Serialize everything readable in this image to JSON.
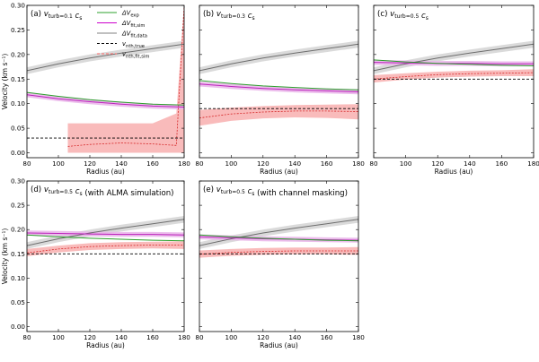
{
  "figure": {
    "xlabel": "Radius (au)",
    "ylabel": "Velocity (km s⁻¹)",
    "xlim": [
      80,
      180
    ],
    "ylim": [
      -0.01,
      0.3
    ],
    "xticks": [
      "80",
      "100",
      "120",
      "140",
      "160",
      "180"
    ],
    "yticks": [
      "0.00",
      "0.05",
      "0.10",
      "0.15",
      "0.20",
      "0.25",
      "0.30"
    ],
    "legend": [
      {
        "label": "ΔV_exp",
        "color": "#2ca02c",
        "style": "solid"
      },
      {
        "label": "ΔV_fit,sim",
        "color": "#cc00cc",
        "style": "solid"
      },
      {
        "label": "ΔV_fit,data",
        "color": "#808080",
        "style": "solid"
      },
      {
        "label": "v_nth,true",
        "color": "#000000",
        "style": "dashed"
      },
      {
        "label": "v_nth,fit,sim",
        "color": "#ff6666",
        "style": "dashed"
      }
    ]
  },
  "chart_data": [
    {
      "type": "line",
      "title": "(a) v_turb=0.1 c_s",
      "x": [
        80,
        100,
        120,
        140,
        160,
        180
      ],
      "series": [
        {
          "name": "ΔV_fit,data",
          "values": [
            0.167,
            0.181,
            0.193,
            0.203,
            0.212,
            0.221
          ],
          "band": 0.007
        },
        {
          "name": "ΔV_exp",
          "values": [
            0.123,
            0.115,
            0.108,
            0.103,
            0.099,
            0.097
          ]
        },
        {
          "name": "ΔV_fit,sim",
          "values": [
            0.118,
            0.11,
            0.104,
            0.099,
            0.095,
            0.093
          ],
          "band": 0.005
        },
        {
          "name": "v_nth,true",
          "values": [
            0.03,
            0.03,
            0.03,
            0.03,
            0.03,
            0.03
          ]
        },
        {
          "name": "v_nth,fit,sim",
          "x": [
            106,
            120,
            140,
            160,
            175,
            180
          ],
          "values": [
            0.013,
            0.017,
            0.02,
            0.018,
            0.015,
            0.3
          ],
          "lower": [
            0.0,
            0.0,
            0.0,
            0.0,
            0.0,
            0.0
          ],
          "upper": [
            0.06,
            0.06,
            0.06,
            0.06,
            0.08,
            0.3
          ]
        }
      ]
    },
    {
      "type": "line",
      "title": "(b) v_turb=0.3 c_s",
      "x": [
        80,
        100,
        120,
        140,
        160,
        180
      ],
      "series": [
        {
          "name": "ΔV_fit,data",
          "values": [
            0.167,
            0.181,
            0.193,
            0.203,
            0.212,
            0.221
          ],
          "band": 0.007
        },
        {
          "name": "ΔV_exp",
          "values": [
            0.147,
            0.141,
            0.136,
            0.133,
            0.13,
            0.128
          ]
        },
        {
          "name": "ΔV_fit,sim",
          "values": [
            0.14,
            0.135,
            0.131,
            0.128,
            0.126,
            0.124
          ],
          "band": 0.005
        },
        {
          "name": "v_nth,true",
          "values": [
            0.09,
            0.09,
            0.09,
            0.09,
            0.09,
            0.09
          ]
        },
        {
          "name": "v_nth,fit,sim",
          "values": [
            0.071,
            0.079,
            0.083,
            0.085,
            0.085,
            0.084
          ],
          "lower": [
            0.055,
            0.065,
            0.07,
            0.072,
            0.071,
            0.068
          ],
          "upper": [
            0.087,
            0.092,
            0.095,
            0.097,
            0.098,
            0.099
          ]
        }
      ]
    },
    {
      "type": "line",
      "title": "(c) v_turb=0.5 c_s",
      "x": [
        80,
        100,
        120,
        140,
        160,
        180
      ],
      "series": [
        {
          "name": "ΔV_fit,data",
          "values": [
            0.167,
            0.181,
            0.193,
            0.203,
            0.212,
            0.221
          ],
          "band": 0.007
        },
        {
          "name": "ΔV_exp",
          "values": [
            0.189,
            0.185,
            0.182,
            0.18,
            0.178,
            0.177
          ]
        },
        {
          "name": "ΔV_fit,sim",
          "values": [
            0.184,
            0.183,
            0.182,
            0.182,
            0.181,
            0.181
          ],
          "band": 0.005
        },
        {
          "name": "v_nth,true",
          "values": [
            0.15,
            0.15,
            0.15,
            0.15,
            0.15,
            0.15
          ]
        },
        {
          "name": "v_nth,fit,sim",
          "values": [
            0.15,
            0.155,
            0.159,
            0.161,
            0.162,
            0.163
          ],
          "lower": [
            0.143,
            0.149,
            0.153,
            0.155,
            0.156,
            0.156
          ],
          "upper": [
            0.158,
            0.162,
            0.165,
            0.167,
            0.168,
            0.17
          ]
        }
      ]
    },
    {
      "type": "line",
      "title": "(d) v_turb=0.5 c_s (with ALMA simulation)",
      "x": [
        80,
        100,
        120,
        140,
        160,
        180
      ],
      "series": [
        {
          "name": "ΔV_fit,data",
          "values": [
            0.167,
            0.181,
            0.193,
            0.203,
            0.212,
            0.221
          ],
          "band": 0.007
        },
        {
          "name": "ΔV_exp",
          "values": [
            0.189,
            0.185,
            0.182,
            0.18,
            0.178,
            0.177
          ]
        },
        {
          "name": "ΔV_fit,sim",
          "values": [
            0.193,
            0.192,
            0.191,
            0.19,
            0.19,
            0.189
          ],
          "band": 0.005
        },
        {
          "name": "v_nth,true",
          "values": [
            0.15,
            0.15,
            0.15,
            0.15,
            0.15,
            0.15
          ]
        },
        {
          "name": "v_nth,fit,sim",
          "values": [
            0.152,
            0.16,
            0.165,
            0.167,
            0.168,
            0.168
          ],
          "lower": [
            0.145,
            0.153,
            0.158,
            0.16,
            0.161,
            0.16
          ],
          "upper": [
            0.16,
            0.167,
            0.172,
            0.174,
            0.175,
            0.176
          ]
        }
      ]
    },
    {
      "type": "line",
      "title": "(e) v_turb=0.5 c_s (with channel masking)",
      "x": [
        80,
        100,
        120,
        140,
        160,
        180
      ],
      "series": [
        {
          "name": "ΔV_fit,data",
          "values": [
            0.167,
            0.181,
            0.193,
            0.203,
            0.212,
            0.221
          ],
          "band": 0.007
        },
        {
          "name": "ΔV_exp",
          "values": [
            0.189,
            0.185,
            0.182,
            0.18,
            0.178,
            0.177
          ]
        },
        {
          "name": "ΔV_fit,sim",
          "values": [
            0.185,
            0.183,
            0.181,
            0.18,
            0.179,
            0.178
          ],
          "band": 0.005
        },
        {
          "name": "v_nth,true",
          "values": [
            0.15,
            0.15,
            0.15,
            0.15,
            0.15,
            0.15
          ]
        },
        {
          "name": "v_nth,fit,sim",
          "values": [
            0.149,
            0.153,
            0.155,
            0.156,
            0.156,
            0.156
          ],
          "lower": [
            0.142,
            0.146,
            0.148,
            0.149,
            0.149,
            0.148
          ],
          "upper": [
            0.157,
            0.16,
            0.162,
            0.163,
            0.163,
            0.164
          ]
        }
      ]
    }
  ]
}
